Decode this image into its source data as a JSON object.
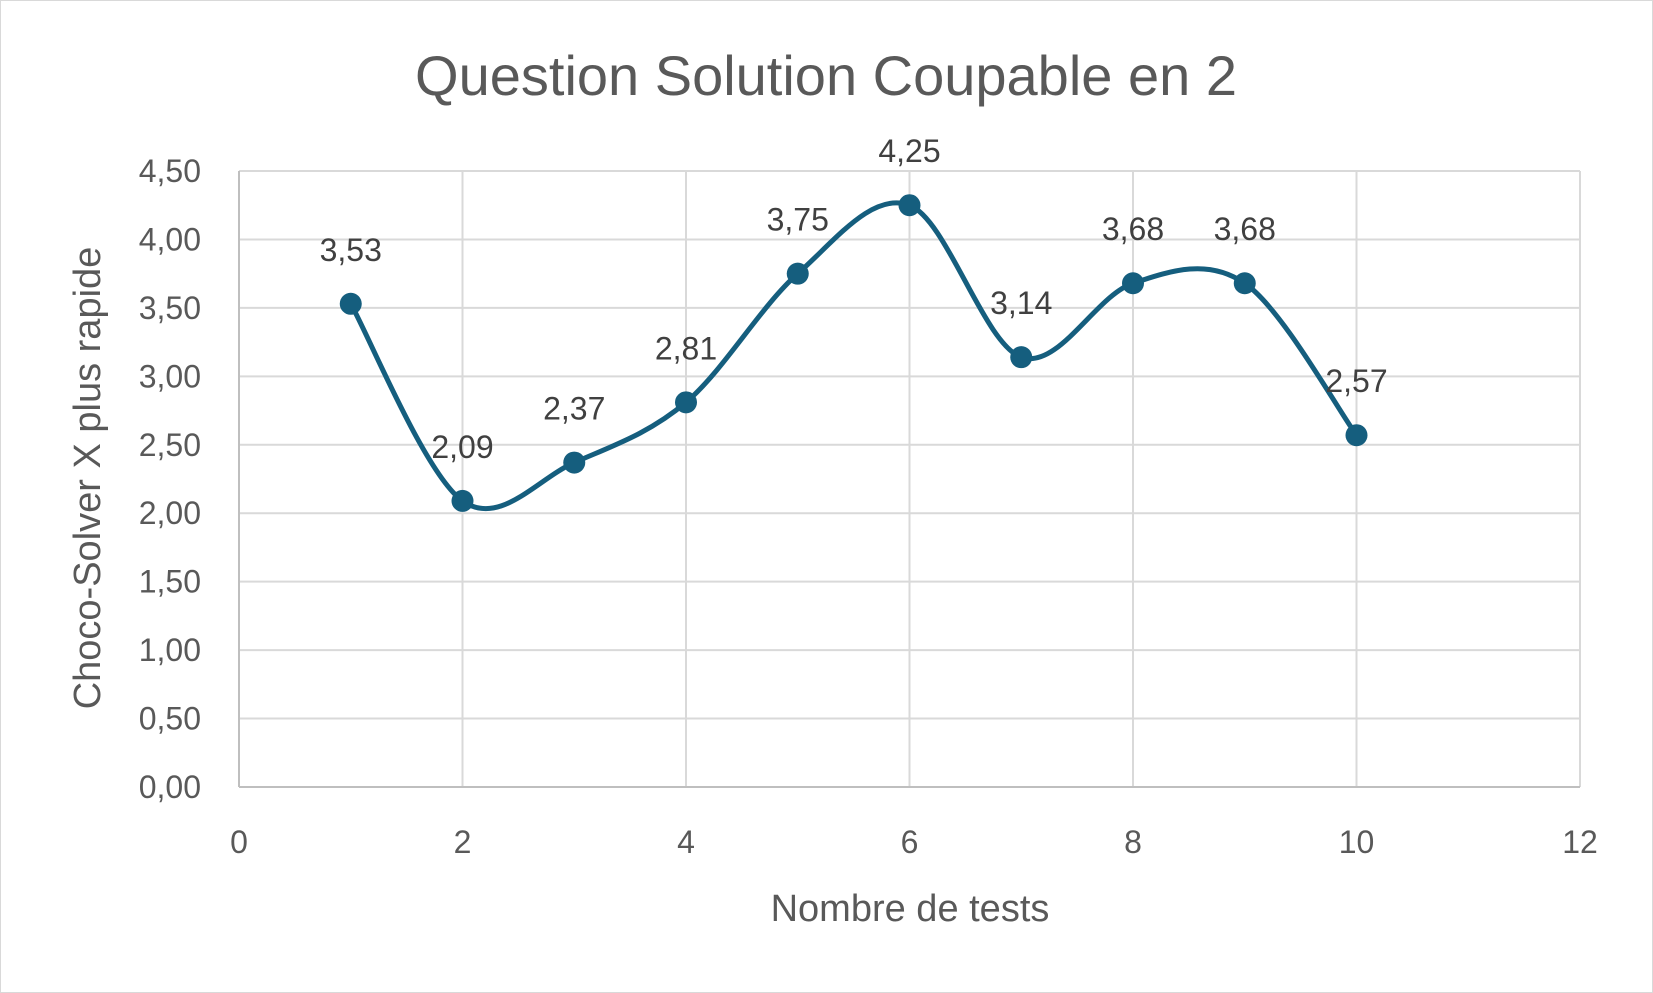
{
  "chart_data": {
    "type": "scatter",
    "title": "Question Solution Coupable en 2",
    "xlabel": "Nombre de tests",
    "ylabel": "Choco-Solver X plus rapide",
    "xlim": [
      0,
      12
    ],
    "ylim": [
      0,
      4.5
    ],
    "x_ticks": [
      "0",
      "2",
      "4",
      "6",
      "8",
      "10",
      "12"
    ],
    "y_ticks": [
      "0,00",
      "0,50",
      "1,00",
      "1,50",
      "2,00",
      "2,50",
      "3,00",
      "3,50",
      "4,00",
      "4,50"
    ],
    "grid": true,
    "smoothed_line": true,
    "series": [
      {
        "x": [
          1,
          2,
          3,
          4,
          5,
          6,
          7,
          8,
          9,
          10
        ],
        "y": [
          3.53,
          2.09,
          2.37,
          2.81,
          3.75,
          4.25,
          3.14,
          3.68,
          3.68,
          2.57
        ],
        "labels": [
          "3,53",
          "2,09",
          "2,37",
          "2,81",
          "3,75",
          "4,25",
          "3,14",
          "3,68",
          "3,68",
          "2,57"
        ],
        "color": "#155e7e"
      }
    ]
  }
}
